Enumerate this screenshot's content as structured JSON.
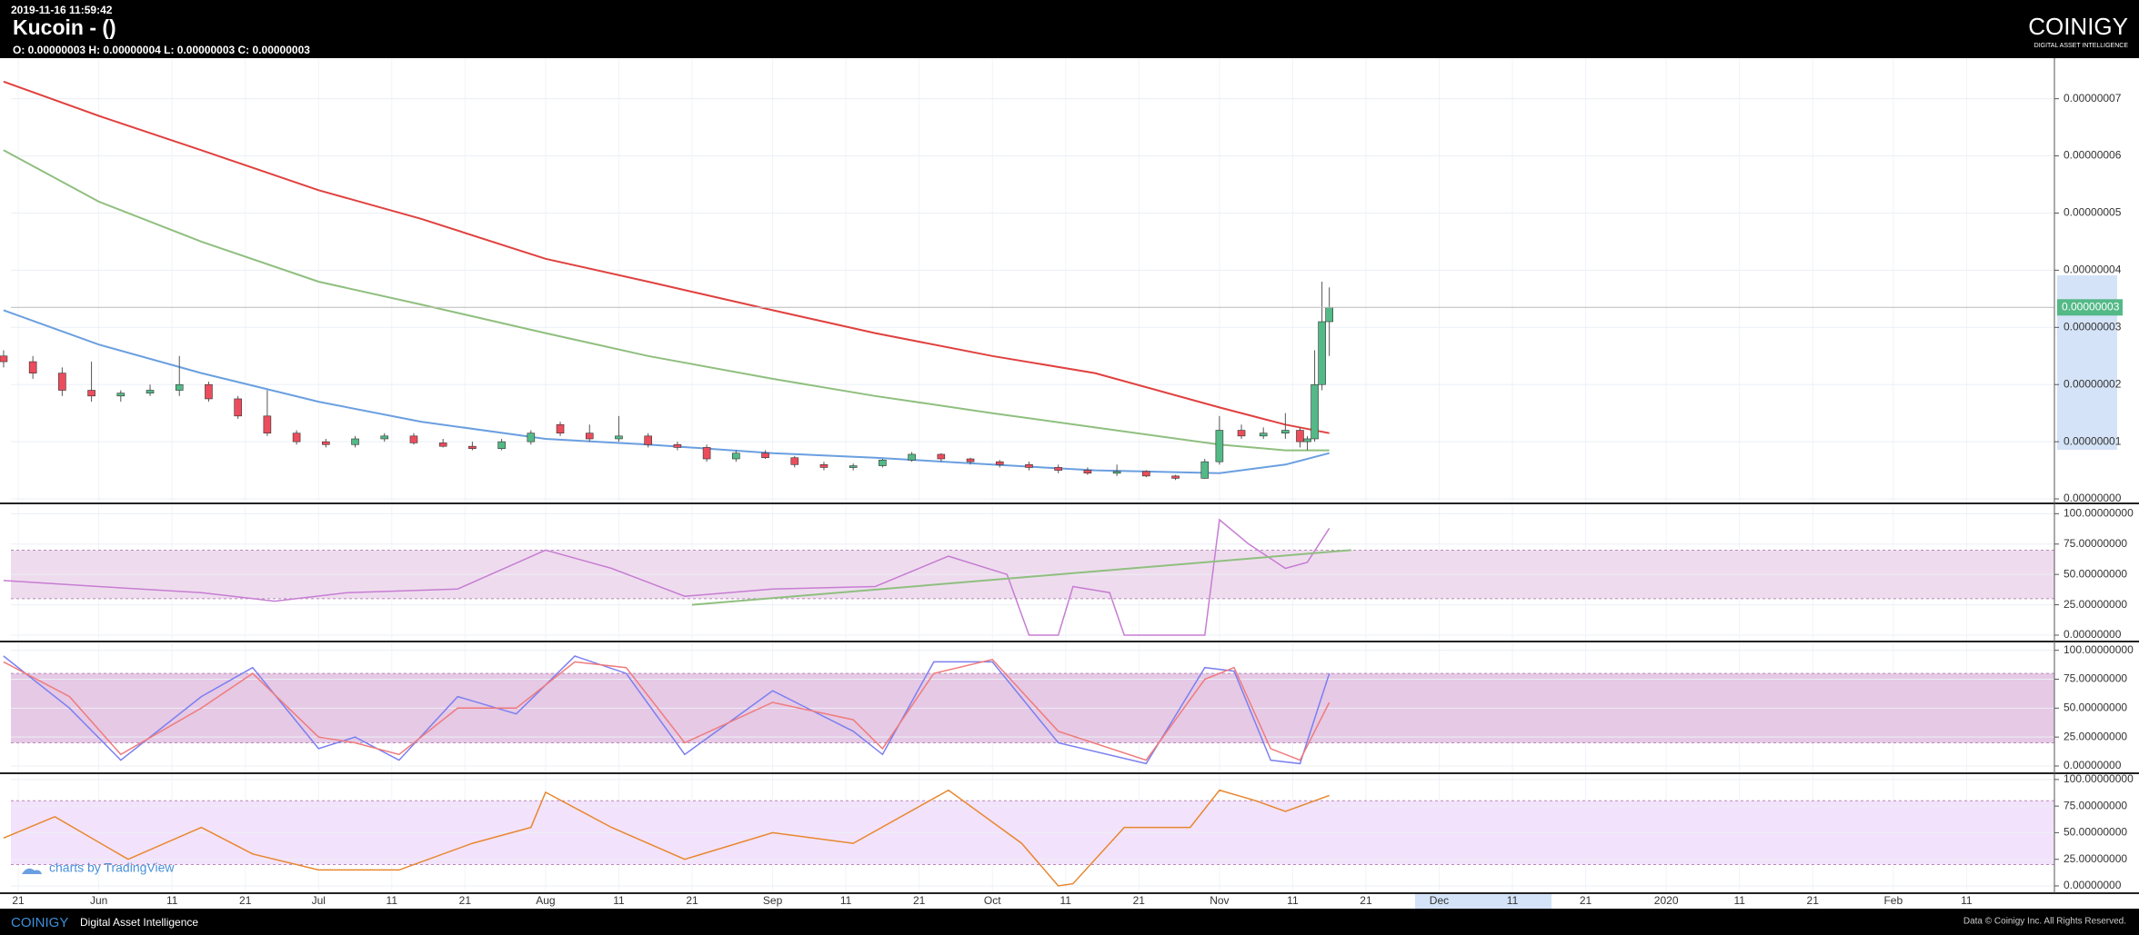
{
  "header": {
    "timestamp": "2019-11-16 11:59:42",
    "title": "Kucoin -  ()",
    "ohlc": "O: 0.00000003 H: 0.00000004 L: 0.00000003 C: 0.00000003",
    "logo": "COINIGY",
    "logo_tagline": "DIGITAL ASSET INTELLIGENCE"
  },
  "watermark": "charts by TradingView",
  "footer": {
    "logo": "COINIGY",
    "tagline": "Digital Asset Intelligence",
    "copyright": "Data © Coinigy Inc.  All Rights Reserved."
  },
  "chart_data": [
    {
      "type": "candlestick",
      "up_color": "#53b987",
      "down_color": "#eb4d5c",
      "grid": true,
      "xlim": [
        "2019-05-20",
        "2020-02-23"
      ],
      "xticks": [
        {
          "value": "2019-05-21",
          "label": "21"
        },
        {
          "value": "2019-06-01",
          "label": "Jun"
        },
        {
          "value": "2019-06-11",
          "label": "11"
        },
        {
          "value": "2019-06-21",
          "label": "21"
        },
        {
          "value": "2019-07-01",
          "label": "Jul"
        },
        {
          "value": "2019-07-11",
          "label": "11"
        },
        {
          "value": "2019-07-21",
          "label": "21"
        },
        {
          "value": "2019-08-01",
          "label": "Aug"
        },
        {
          "value": "2019-08-11",
          "label": "11"
        },
        {
          "value": "2019-08-21",
          "label": "21"
        },
        {
          "value": "2019-09-01",
          "label": "Sep"
        },
        {
          "value": "2019-09-11",
          "label": "11"
        },
        {
          "value": "2019-09-21",
          "label": "21"
        },
        {
          "value": "2019-10-01",
          "label": "Oct"
        },
        {
          "value": "2019-10-11",
          "label": "11"
        },
        {
          "value": "2019-10-21",
          "label": "21"
        },
        {
          "value": "2019-11-01",
          "label": "Nov"
        },
        {
          "value": "2019-11-11",
          "label": "11"
        },
        {
          "value": "2019-11-21",
          "label": "21"
        },
        {
          "value": "2019-12-01",
          "label": "Dec"
        },
        {
          "value": "2019-12-11",
          "label": "11"
        },
        {
          "value": "2019-12-21",
          "label": "21"
        },
        {
          "value": "2020-01-01",
          "label": "2020"
        },
        {
          "value": "2020-01-11",
          "label": "11"
        },
        {
          "value": "2020-01-21",
          "label": "21"
        },
        {
          "value": "2020-02-01",
          "label": "Feb"
        },
        {
          "value": "2020-02-11",
          "label": "11"
        }
      ],
      "ylim": [
        -6.3e-10,
        7.71e-08
      ],
      "yticks": [
        {
          "value": 0,
          "label": "0.00000000"
        },
        {
          "value": 1e-08,
          "label": "0.00000001"
        },
        {
          "value": 2e-08,
          "label": "0.00000002"
        },
        {
          "value": 3e-08,
          "label": "0.00000003"
        },
        {
          "value": 4e-08,
          "label": "0.00000004"
        },
        {
          "value": 5e-08,
          "label": "0.00000005"
        },
        {
          "value": 6e-08,
          "label": "0.00000006"
        },
        {
          "value": 7e-08,
          "label": "0.00000007"
        }
      ],
      "close_label": "0.00000003",
      "x": [
        "2019-05-19",
        "2019-05-23",
        "2019-05-27",
        "2019-05-31",
        "2019-06-04",
        "2019-06-08",
        "2019-06-12",
        "2019-06-16",
        "2019-06-20",
        "2019-06-24",
        "2019-06-28",
        "2019-07-02",
        "2019-07-06",
        "2019-07-10",
        "2019-07-14",
        "2019-07-18",
        "2019-07-22",
        "2019-07-26",
        "2019-07-30",
        "2019-08-03",
        "2019-08-07",
        "2019-08-11",
        "2019-08-15",
        "2019-08-19",
        "2019-08-23",
        "2019-08-27",
        "2019-08-31",
        "2019-09-04",
        "2019-09-08",
        "2019-09-12",
        "2019-09-16",
        "2019-09-20",
        "2019-09-24",
        "2019-09-28",
        "2019-10-02",
        "2019-10-06",
        "2019-10-10",
        "2019-10-14",
        "2019-10-18",
        "2019-10-22",
        "2019-10-26",
        "2019-10-30",
        "2019-11-01",
        "2019-11-04",
        "2019-11-07",
        "2019-11-10",
        "2019-11-12",
        "2019-11-13",
        "2019-11-14",
        "2019-11-15",
        "2019-11-16"
      ],
      "open": [
        2.5e-08,
        2.4e-08,
        2.2e-08,
        1.9e-08,
        1.8e-08,
        1.85e-08,
        1.9e-08,
        2e-08,
        1.75e-08,
        1.45e-08,
        1.15e-08,
        1e-08,
        9.5e-09,
        1.05e-08,
        1.1e-08,
        9.8e-09,
        9.2e-09,
        8.8e-09,
        1e-08,
        1.3e-08,
        1.15e-08,
        1.05e-08,
        1.1e-08,
        9.5e-09,
        9e-09,
        7e-09,
        8e-09,
        7.2e-09,
        6e-09,
        5.5e-09,
        5.8e-09,
        6.8e-09,
        7.8e-09,
        7e-09,
        6.5e-09,
        6e-09,
        5.5e-09,
        5e-09,
        4.5e-09,
        4.8e-09,
        4e-09,
        3.6e-09,
        6.5e-09,
        1.2e-08,
        1.1e-08,
        1.15e-08,
        1.2e-08,
        1e-08,
        1.05e-08,
        2e-08,
        3.1e-08
      ],
      "high": [
        2.6e-08,
        2.5e-08,
        2.3e-08,
        2.4e-08,
        1.9e-08,
        2e-08,
        2.5e-08,
        2.05e-08,
        1.8e-08,
        1.9e-08,
        1.2e-08,
        1.05e-08,
        1.1e-08,
        1.15e-08,
        1.15e-08,
        1.05e-08,
        1e-08,
        1.05e-08,
        1.2e-08,
        1.35e-08,
        1.3e-08,
        1.45e-08,
        1.15e-08,
        1e-08,
        9.5e-09,
        8.5e-09,
        8.5e-09,
        7.5e-09,
        6.5e-09,
        6.2e-09,
        7e-09,
        8.2e-09,
        8e-09,
        7.2e-09,
        6.8e-09,
        6.5e-09,
        6e-09,
        5.5e-09,
        6e-09,
        5e-09,
        4.2e-09,
        7e-09,
        1.45e-08,
        1.3e-08,
        1.25e-08,
        1.5e-08,
        1.25e-08,
        1.1e-08,
        2.6e-08,
        3.8e-08,
        3.7e-08
      ],
      "low": [
        2.3e-08,
        2.1e-08,
        1.8e-08,
        1.7e-08,
        1.7e-08,
        1.8e-08,
        1.8e-08,
        1.7e-08,
        1.4e-08,
        1.1e-08,
        9.5e-09,
        9e-09,
        9e-09,
        1e-08,
        9.5e-09,
        9e-09,
        8.5e-09,
        8.5e-09,
        9.5e-09,
        1.1e-08,
        1e-08,
        1e-08,
        9e-09,
        8.5e-09,
        6.5e-09,
        6.5e-09,
        7e-09,
        5.5e-09,
        5e-09,
        5e-09,
        5.5e-09,
        6.5e-09,
        6.5e-09,
        6e-09,
        5.5e-09,
        5e-09,
        4.5e-09,
        4.2e-09,
        4e-09,
        3.8e-09,
        3.3e-09,
        3.5e-09,
        6e-09,
        1.05e-08,
        1.05e-08,
        1.05e-08,
        9e-09,
        8.5e-09,
        1e-08,
        1.9e-08,
        2.5e-08
      ],
      "close": [
        2.4e-08,
        2.2e-08,
        1.9e-08,
        1.8e-08,
        1.85e-08,
        1.9e-08,
        2e-08,
        1.75e-08,
        1.45e-08,
        1.15e-08,
        1e-08,
        9.5e-09,
        1.05e-08,
        1.1e-08,
        9.8e-09,
        9.2e-09,
        8.8e-09,
        1e-08,
        1.15e-08,
        1.15e-08,
        1.05e-08,
        1.1e-08,
        9.5e-09,
        9e-09,
        7e-09,
        8e-09,
        7.2e-09,
        6e-09,
        5.5e-09,
        5.8e-09,
        6.8e-09,
        7.8e-09,
        7e-09,
        6.5e-09,
        6e-09,
        5.5e-09,
        5e-09,
        4.5e-09,
        4.8e-09,
        4e-09,
        3.6e-09,
        6.5e-09,
        1.2e-08,
        1.1e-08,
        1.15e-08,
        1.2e-08,
        1e-08,
        1.05e-08,
        2e-08,
        3.1e-08,
        3.35e-08
      ],
      "line_x": [
        "2019-05-19",
        "2019-06-01",
        "2019-06-15",
        "2019-07-01",
        "2019-07-15",
        "2019-08-01",
        "2019-08-15",
        "2019-09-01",
        "2019-09-15",
        "2019-10-01",
        "2019-10-15",
        "2019-11-01",
        "2019-11-10",
        "2019-11-16"
      ],
      "overlays": [
        {
          "color": "#e0413f",
          "values": [
            7.3e-08,
            6.7e-08,
            6.1e-08,
            5.4e-08,
            4.9e-08,
            4.2e-08,
            3.8e-08,
            3.3e-08,
            2.9e-08,
            2.5e-08,
            2.2e-08,
            1.6e-08,
            1.3e-08,
            1.15e-08
          ]
        },
        {
          "color": "#8fbf7f",
          "values": [
            6.1e-08,
            5.2e-08,
            4.5e-08,
            3.8e-08,
            3.4e-08,
            2.9e-08,
            2.5e-08,
            2.1e-08,
            1.8e-08,
            1.5e-08,
            1.25e-08,
            9.5e-09,
            8.5e-09,
            8.5e-09
          ]
        },
        {
          "color": "#6a9fe0",
          "values": [
            3.3e-08,
            2.7e-08,
            2.2e-08,
            1.7e-08,
            1.35e-08,
            1.05e-08,
            9.5e-09,
            8e-09,
            7.2e-09,
            6e-09,
            5e-09,
            4.5e-09,
            6e-09,
            8e-09
          ]
        }
      ]
    },
    {
      "type": "line",
      "ylim": [
        -4.5,
        107
      ],
      "band": [
        30,
        70
      ],
      "band_color": "#eedcee",
      "yticks": [
        {
          "value": 0,
          "label": "0.00000000"
        },
        {
          "value": 25,
          "label": "25.00000000"
        },
        {
          "value": 50,
          "label": "50.00000000"
        },
        {
          "value": 75,
          "label": "75.00000000"
        },
        {
          "value": 100,
          "label": "100.00000000"
        }
      ],
      "x": [
        "2019-05-19",
        "2019-06-01",
        "2019-06-15",
        "2019-06-25",
        "2019-07-05",
        "2019-07-20",
        "2019-08-01",
        "2019-08-10",
        "2019-08-20",
        "2019-09-01",
        "2019-09-15",
        "2019-09-25",
        "2019-10-03",
        "2019-10-06",
        "2019-10-10",
        "2019-10-12",
        "2019-10-17",
        "2019-10-19",
        "2019-10-30",
        "2019-11-01",
        "2019-11-05",
        "2019-11-10",
        "2019-11-13",
        "2019-11-16"
      ],
      "series": [
        {
          "color": "#c77dd3",
          "values": [
            45,
            40,
            35,
            28,
            35,
            38,
            70,
            55,
            32,
            38,
            40,
            65,
            50,
            0,
            0,
            40,
            35,
            0,
            0,
            95,
            75,
            55,
            60,
            88
          ]
        }
      ],
      "trendline": {
        "color": "#8fbf7f",
        "x": [
          "2019-08-21",
          "2019-11-19"
        ],
        "values": [
          25,
          70
        ]
      }
    },
    {
      "type": "line",
      "ylim": [
        -5.5,
        106
      ],
      "band": [
        20,
        80
      ],
      "band_color": "#e5c9e5",
      "yticks": [
        {
          "value": 0,
          "label": "0.00000000"
        },
        {
          "value": 25,
          "label": "25.00000000"
        },
        {
          "value": 50,
          "label": "50.00000000"
        },
        {
          "value": 75,
          "label": "75.00000000"
        },
        {
          "value": 100,
          "label": "100.00000000"
        }
      ],
      "x": [
        "2019-05-19",
        "2019-05-28",
        "2019-06-04",
        "2019-06-15",
        "2019-06-22",
        "2019-07-01",
        "2019-07-06",
        "2019-07-12",
        "2019-07-20",
        "2019-07-28",
        "2019-08-05",
        "2019-08-12",
        "2019-08-20",
        "2019-09-01",
        "2019-09-12",
        "2019-09-16",
        "2019-09-23",
        "2019-10-01",
        "2019-10-10",
        "2019-10-22",
        "2019-10-30",
        "2019-11-03",
        "2019-11-08",
        "2019-11-12",
        "2019-11-16"
      ],
      "series": [
        {
          "color": "#7b7ff0",
          "values": [
            95,
            50,
            5,
            60,
            85,
            15,
            25,
            5,
            60,
            45,
            95,
            80,
            10,
            65,
            30,
            10,
            90,
            90,
            20,
            2,
            85,
            82,
            5,
            2,
            80
          ]
        },
        {
          "color": "#f07b7b",
          "values": [
            90,
            60,
            10,
            50,
            80,
            25,
            20,
            10,
            50,
            50,
            90,
            85,
            20,
            55,
            40,
            15,
            80,
            92,
            30,
            5,
            75,
            85,
            15,
            5,
            55
          ]
        }
      ]
    },
    {
      "type": "line",
      "ylim": [
        -6,
        105
      ],
      "band": [
        20,
        80
      ],
      "band_color": "#f3e2fb",
      "yticks": [
        {
          "value": 0,
          "label": "0.00000000"
        },
        {
          "value": 25,
          "label": "25.00000000"
        },
        {
          "value": 50,
          "label": "50.00000000"
        },
        {
          "value": 75,
          "label": "75.00000000"
        },
        {
          "value": 100,
          "label": "100.00000000"
        }
      ],
      "x": [
        "2019-05-19",
        "2019-05-26",
        "2019-06-05",
        "2019-06-15",
        "2019-06-22",
        "2019-07-01",
        "2019-07-12",
        "2019-07-22",
        "2019-07-30",
        "2019-08-01",
        "2019-08-10",
        "2019-08-20",
        "2019-09-01",
        "2019-09-12",
        "2019-09-25",
        "2019-10-05",
        "2019-10-10",
        "2019-10-12",
        "2019-10-19",
        "2019-10-28",
        "2019-11-01",
        "2019-11-06",
        "2019-11-10",
        "2019-11-16"
      ],
      "series": [
        {
          "color": "#e8872f",
          "values": [
            45,
            65,
            25,
            55,
            30,
            15,
            15,
            40,
            55,
            88,
            55,
            25,
            50,
            40,
            90,
            40,
            0,
            2,
            55,
            55,
            90,
            80,
            70,
            85
          ]
        }
      ]
    }
  ]
}
